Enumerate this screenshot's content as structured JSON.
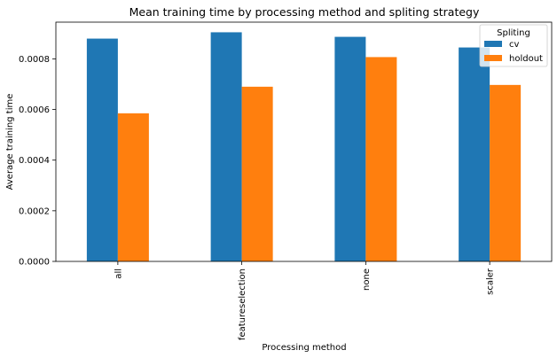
{
  "chart_data": {
    "type": "bar",
    "title": "Mean training time by processing method and spliting strategy",
    "xlabel": "Processing method",
    "ylabel": "Average training time",
    "categories": [
      "all",
      "featureselection",
      "none",
      "scaler"
    ],
    "series": [
      {
        "name": "cv",
        "color": "#1f77b4",
        "values": [
          0.00088,
          0.000905,
          0.000887,
          0.000845
        ]
      },
      {
        "name": "holdout",
        "color": "#ff7f0e",
        "values": [
          0.000585,
          0.00069,
          0.000807,
          0.000697
        ]
      }
    ],
    "ylim": [
      0,
      0.000945
    ],
    "yticks": [
      "0.0000",
      "0.0002",
      "0.0004",
      "0.0006",
      "0.0008"
    ],
    "ytick_values": [
      0,
      0.0002,
      0.0004,
      0.0006,
      0.0008
    ],
    "legend": {
      "title": "Spliting",
      "position": "top-right"
    },
    "grid": false
  }
}
